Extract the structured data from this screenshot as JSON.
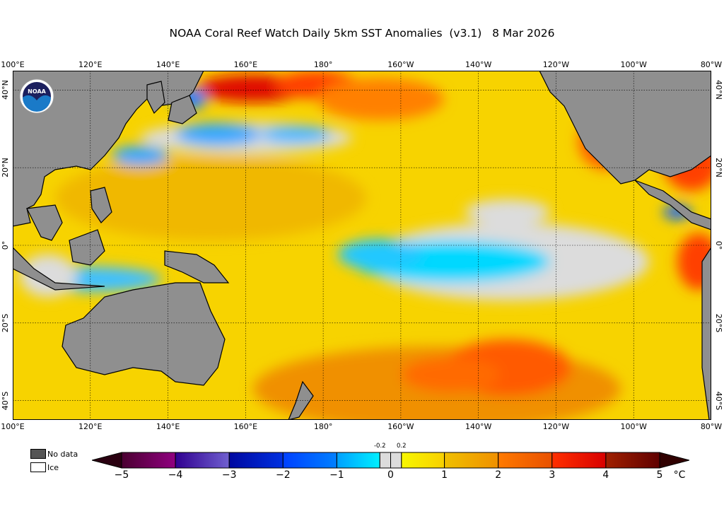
{
  "title": "NOAA Coral Reef Watch Daily 5km SST Anomalies  (v3.1)   8 Mar 2026",
  "logo_text": "NOAA",
  "lon_labels": [
    "100°E",
    "120°E",
    "140°E",
    "160°E",
    "180°",
    "160°W",
    "140°W",
    "120°W",
    "100°W",
    "80°W"
  ],
  "lat_labels": [
    "40°N",
    "20°N",
    "0°",
    "20°S",
    "40°S"
  ],
  "legend": {
    "no_data": "No data",
    "ice": "Ice",
    "no_data_color": "#555555",
    "ice_color": "#ffffff"
  },
  "colorbar": {
    "ticks": [
      "−5",
      "−4",
      "−3",
      "−2",
      "−1",
      "0",
      "1",
      "2",
      "3",
      "4",
      "5"
    ],
    "small_ticks": [
      "-0.2",
      "0.2"
    ],
    "unit": "°C",
    "colors": {
      "-5": "#2a0010",
      "-4": "#8a0080",
      "-3": "#6a5acd",
      "-2": "#0010b0",
      "-1": "#0060ff",
      "cyan": "#00e8ff",
      "zero": "#dcdcdc",
      "1": "#f7f000",
      "2": "#f0a000",
      "3": "#ff6000",
      "4": "#e00000",
      "5": "#600000"
    }
  },
  "colors": {
    "land": "#8f8f8f",
    "base_anomaly": "#f7d300"
  }
}
